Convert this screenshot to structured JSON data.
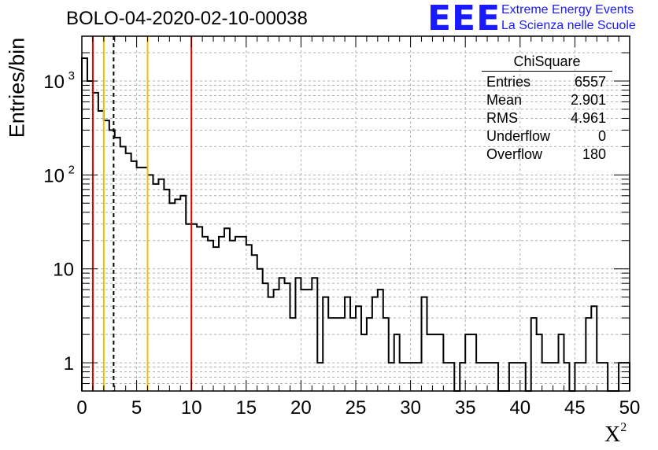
{
  "title": "BOLO-04-2020-02-10-00038",
  "logo": {
    "letters": "EEE",
    "line1": "Extreme Energy Events",
    "line2": "La Scienza nelle Scuole",
    "color": "#1a1aff"
  },
  "stats": {
    "title": "ChiSquare",
    "rows": [
      {
        "label": "Entries",
        "value": "6557"
      },
      {
        "label": "Mean",
        "value": "2.901"
      },
      {
        "label": "RMS",
        "value": "4.961"
      },
      {
        "label": "Underflow",
        "value": "0"
      },
      {
        "label": "Overflow",
        "value": "180"
      }
    ]
  },
  "chart_data": {
    "type": "bar",
    "style": "step histogram",
    "xlabel": "X",
    "xlabel_superscript": "2",
    "ylabel": "Entries/bin",
    "xlim": [
      0,
      50
    ],
    "ylim": [
      0.5,
      3000
    ],
    "yscale": "log",
    "grid": true,
    "bin_width": 0.5,
    "x_ticks": [
      "0",
      "5",
      "10",
      "15",
      "20",
      "25",
      "30",
      "35",
      "40",
      "45",
      "50"
    ],
    "y_ticks": [
      {
        "value": 1,
        "label": "1"
      },
      {
        "value": 10,
        "label": "10"
      },
      {
        "value": 100,
        "label": "10",
        "sup": "2"
      },
      {
        "value": 1000,
        "label": "10",
        "sup": "3"
      }
    ],
    "values": [
      1750,
      1000,
      750,
      480,
      380,
      300,
      250,
      200,
      170,
      140,
      120,
      120,
      100,
      80,
      90,
      70,
      50,
      55,
      60,
      30,
      30,
      28,
      22,
      20,
      17,
      22,
      27,
      20,
      22,
      22,
      18,
      14,
      10,
      7,
      5,
      6,
      8,
      7,
      3,
      8,
      6,
      6,
      8,
      1,
      5,
      3,
      3,
      3,
      5,
      3,
      4,
      2,
      3,
      5,
      6,
      3,
      1,
      2,
      1,
      1,
      1,
      1,
      5,
      2,
      2,
      2,
      1,
      1,
      0.5,
      1,
      2,
      2,
      1,
      1,
      1,
      1,
      0.5,
      0.5,
      1,
      1,
      1,
      0.5,
      3,
      2,
      1,
      1,
      1,
      2,
      1,
      0.5,
      1,
      1,
      3,
      4,
      1,
      1,
      0.5,
      0.5,
      1,
      1
    ],
    "vlines": [
      {
        "x": 1,
        "color": "#e00000",
        "style": "solid"
      },
      {
        "x": 2,
        "color": "#f0c000",
        "style": "solid"
      },
      {
        "x": 2.9,
        "color": "#000000",
        "style": "dashed"
      },
      {
        "x": 6,
        "color": "#f0c000",
        "style": "solid"
      },
      {
        "x": 10,
        "color": "#e00000",
        "style": "solid"
      }
    ]
  }
}
